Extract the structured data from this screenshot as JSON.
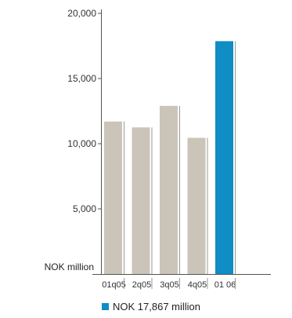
{
  "chart_data": {
    "type": "bar",
    "categories": [
      "01q05",
      "2q05",
      "3q05",
      "4q05",
      "01 06"
    ],
    "values": [
      11700,
      11250,
      12900,
      10450,
      17867
    ],
    "ylim": [
      0,
      20000
    ],
    "yticks": [
      5000,
      10000,
      15000,
      20000
    ],
    "ytick_labels": [
      "5,000",
      "10,000",
      "15,000",
      "20,000"
    ],
    "ylabel": "NOK million",
    "highlight_index": 4,
    "legend": "NOK 17,867 million",
    "legend_placement": "bottom",
    "grid": false,
    "colors": {
      "bar": "#cbc4b8",
      "highlight": "#0f8dc4",
      "axis": "#555555"
    }
  }
}
